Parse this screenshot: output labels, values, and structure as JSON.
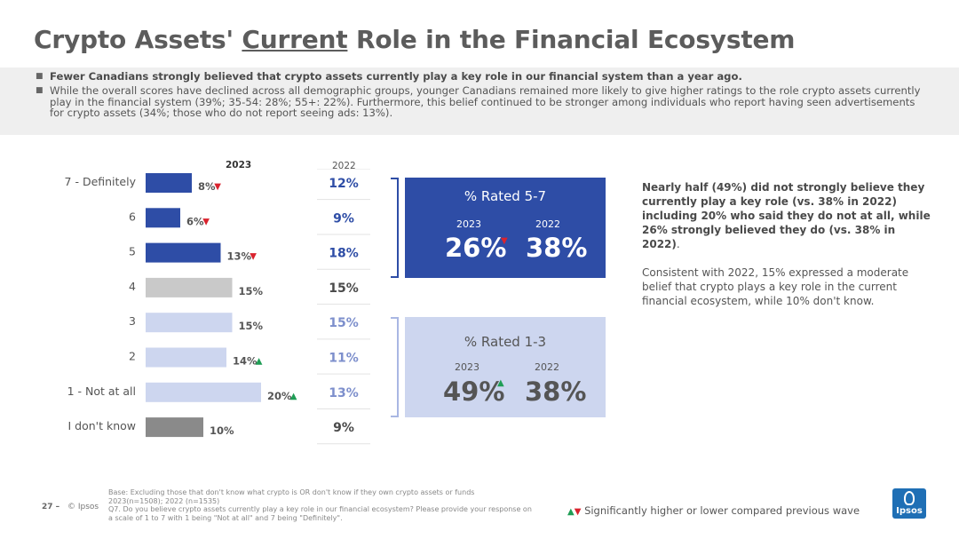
{
  "title": {
    "pre": "Crypto Assets'",
    "underlined": "Current",
    "post": "Role in the Financial Ecosystem"
  },
  "summary": {
    "bullet_icon": "small-square-icon",
    "bullets": [
      "Fewer Canadians strongly believed that crypto assets currently play a key role in our financial system than a year ago.",
      "While the overall scores have declined across all demographic groups, younger Canadians remained more likely to give higher ratings to the role crypto assets currently play in the financial system (39%; 35-54: 28%; 55+: 22%). Furthermore, this belief continued to be stronger among individuals who report having seen advertisements for crypto assets (34%; those who do not report seeing ads: 13%)."
    ]
  },
  "chart_data": {
    "type": "bar",
    "orientation": "horizontal",
    "column_headers": {
      "current": "2023",
      "previous": "2022"
    },
    "categories": [
      "7 - Definitely",
      "6",
      "5",
      "4",
      "3",
      "2",
      "1 - Not at all",
      "I don't know"
    ],
    "series": [
      {
        "values": [
          8,
          6,
          13,
          15,
          15,
          14,
          20,
          10
        ]
      },
      {
        "values": [
          12,
          9,
          18,
          15,
          15,
          11,
          13,
          9
        ]
      }
    ],
    "value_labels_2023": [
      "8%",
      "6%",
      "13%",
      "15%",
      "15%",
      "14%",
      "20%",
      "10%"
    ],
    "value_labels_2022": [
      "12%",
      "9%",
      "18%",
      "15%",
      "15%",
      "11%",
      "13%",
      "9%"
    ],
    "change_markers": [
      "down",
      "down",
      "down",
      "",
      "",
      "up",
      "up",
      ""
    ],
    "xlim": [
      0,
      20
    ],
    "colors": [
      "#2e4da6",
      "#2e4da6",
      "#2e4da6",
      "#c9c9c9",
      "#cdd6ef",
      "#cdd6ef",
      "#cdd6ef",
      "#8a8a8a"
    ],
    "previous_label_colors": [
      "#2e4da6",
      "#2e4da6",
      "#2e4da6",
      "#4a4a4a",
      "#7d8fcc",
      "#7d8fcc",
      "#7d8fcc",
      "#4a4a4a"
    ],
    "up_color": "#1f9d55",
    "down_color": "#d9232e"
  },
  "rated_boxes": {
    "top": {
      "label": "% Rated 5-7",
      "year_current": "2023",
      "year_previous": "2022",
      "value_current": "26%",
      "value_previous": "38%",
      "marker": "down"
    },
    "bottom": {
      "label": "% Rated 1-3",
      "year_current": "2023",
      "year_previous": "2022",
      "value_current": "49%",
      "value_previous": "38%",
      "marker": "up"
    }
  },
  "note": {
    "bold_text": "Nearly half (49%) did not strongly believe they currently play a key role (vs. 38% in 2022) including 20% who said they do not at all, while 26% strongly believed they do (vs. 38% in 2022)",
    "bold_suffix": ".",
    "text": "Consistent with 2022, 15% expressed a moderate belief that crypto plays a key role in the current financial ecosystem, while 10% don't know."
  },
  "footer": {
    "page": "27 –",
    "source": "© Ipsos",
    "base_lines": [
      "Base: Excluding those that don't know what crypto is OR don't know if they own crypto assets or funds",
      "2023(n=1508); 2022 (n=1535)",
      "Q7. Do you believe crypto assets currently play a key role in our financial ecosystem? Please provide your response on a scale of 1 to 7 with 1 being \"Not at all\" and 7 being \"Definitely\"."
    ],
    "legend_text": "Significantly higher or lower compared previous wave",
    "logo_text": "Ipsos"
  }
}
